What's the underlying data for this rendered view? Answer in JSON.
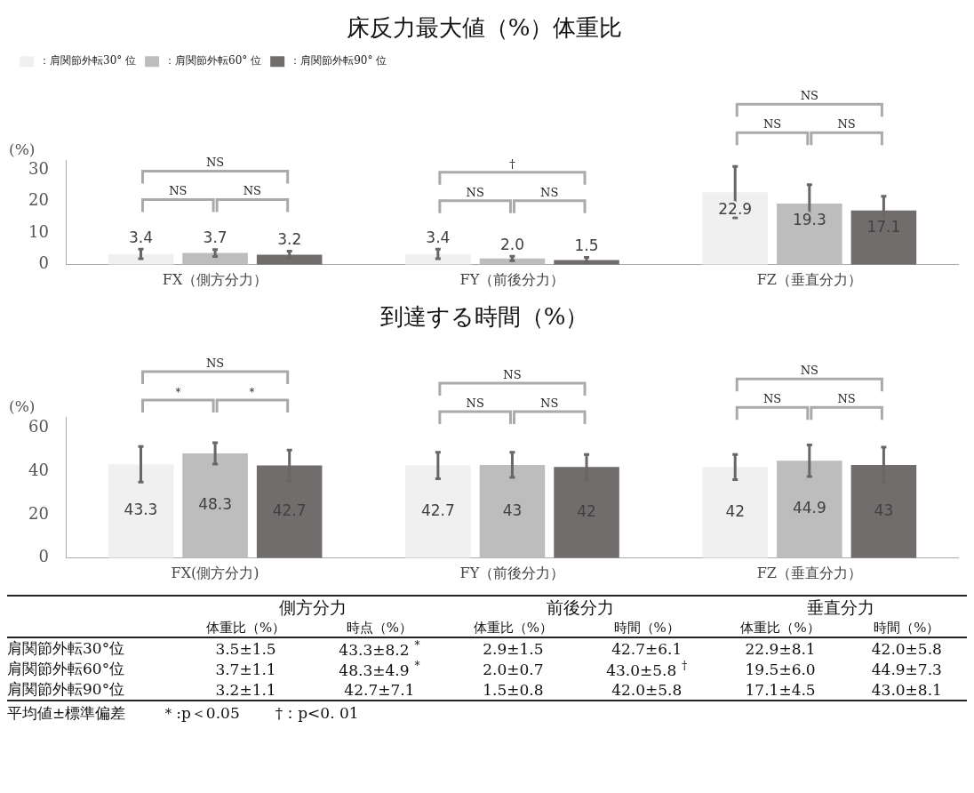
{
  "chart_data": [
    {
      "type": "bar",
      "title": "床反力最大値（%）体重比",
      "ylabel": "(%)",
      "categories": [
        "FX（側方分力）",
        "FY（前後分力）",
        "FZ（垂直分力）"
      ],
      "series": [
        {
          "name": "：肩関節外転30° 位",
          "color": "#f0f0f0",
          "values": [
            3.4,
            3.4,
            22.9
          ],
          "errors": [
            1.5,
            1.5,
            8.1
          ],
          "value_labels": [
            "3.4",
            "3.4",
            "22.9"
          ]
        },
        {
          "name": "：肩関節外転60° 位",
          "color": "#bdbdbd",
          "values": [
            3.7,
            2.0,
            19.3
          ],
          "errors": [
            1.1,
            0.7,
            6.0
          ],
          "value_labels": [
            "3.7",
            "2.0",
            "19.3"
          ]
        },
        {
          "name": "：肩関節外転90° 位",
          "color": "#726d6d",
          "values": [
            3.2,
            1.5,
            17.1
          ],
          "errors": [
            1.1,
            0.8,
            4.5
          ],
          "value_labels": [
            "3.2",
            "1.5",
            "17.1"
          ]
        }
      ],
      "ylim": [
        0,
        33
      ],
      "yticks": [
        0,
        10,
        20,
        30
      ],
      "grid": false,
      "legend": "top left",
      "annotations": [
        "NS",
        "NS",
        "NS",
        "NS",
        "NS",
        "†",
        "NS",
        "NS",
        "NS"
      ]
    },
    {
      "type": "bar",
      "title": "到達する時間（%）",
      "ylabel": "(%)",
      "categories": [
        "FX(側方分力)",
        "FY（前後分力）",
        "FZ（垂直分力）"
      ],
      "series": [
        {
          "color": "#f0f0f0",
          "values": [
            43.3,
            42.7,
            42
          ],
          "errors": [
            8.2,
            6.1,
            5.8
          ],
          "value_labels": [
            "43.3",
            "42.7",
            "42"
          ]
        },
        {
          "color": "#bdbdbd",
          "values": [
            48.3,
            43,
            44.9
          ],
          "errors": [
            4.9,
            5.8,
            7.3
          ],
          "value_labels": [
            "48.3",
            "43",
            "44.9"
          ]
        },
        {
          "color": "#726d6d",
          "values": [
            42.7,
            42,
            43
          ],
          "errors": [
            7.1,
            5.8,
            8.1
          ],
          "value_labels": [
            "42.7",
            "42",
            "43"
          ]
        }
      ],
      "ylim": [
        0,
        65
      ],
      "yticks": [
        0,
        20,
        40,
        60
      ],
      "grid": false,
      "annotations": [
        "＊",
        "＊",
        "NS",
        "NS",
        "NS",
        "NS",
        "NS",
        "NS",
        "NS"
      ]
    },
    {
      "type": "other",
      "annotations": [
        "側方分力",
        "前後分力",
        "垂直分力",
        "体重比（%）",
        "時点（%）",
        "体重比（%）",
        "時間（%）",
        "体重比（%）",
        "時間（%）",
        "肩関節外転30°位",
        "3.5±1.5",
        "43.3±8.2",
        "2.9±1.5",
        "42.7±6.1",
        "22.9±8.1",
        "42.0±5.8",
        "肩関節外転60°位",
        "3.7±1.1",
        "48.3±4.9",
        "2.0±0.7",
        "43.0±5.8",
        "19.5±6.0",
        "44.9±7.3",
        "肩関節外転90°位",
        "3.2±1.1",
        "42.7±7.1",
        "1.5±0.8",
        "42.0±5.8",
        "17.1±4.5",
        "43.0±8.1",
        "*",
        "*",
        "†",
        "平均値±標準偏差",
        "＊:p＜0.05",
        "†：p<0. 01"
      ]
    }
  ]
}
